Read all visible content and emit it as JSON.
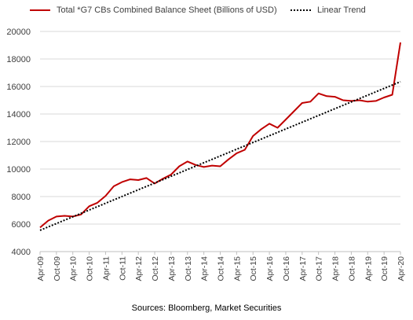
{
  "chart_data": {
    "type": "line",
    "series": [
      {
        "name": "Total *G7 CBs Combined Balance Sheet (Billions of USD)",
        "color": "#c00000",
        "style": "solid",
        "x": [
          "Apr-09",
          "Jul-09",
          "Oct-09",
          "Jan-10",
          "Apr-10",
          "Jul-10",
          "Oct-10",
          "Jan-11",
          "Apr-11",
          "Jul-11",
          "Oct-11",
          "Jan-12",
          "Apr-12",
          "Jul-12",
          "Oct-12",
          "Jan-13",
          "Apr-13",
          "Jul-13",
          "Oct-13",
          "Jan-14",
          "Apr-14",
          "Jul-14",
          "Oct-14",
          "Jan-15",
          "Apr-15",
          "Jul-15",
          "Oct-15",
          "Jan-16",
          "Apr-16",
          "Jul-16",
          "Oct-16",
          "Jan-17",
          "Apr-17",
          "Jul-17",
          "Oct-17",
          "Jan-18",
          "Apr-18",
          "Jul-18",
          "Oct-18",
          "Jan-19",
          "Apr-19",
          "Jul-19",
          "Oct-19",
          "Jan-20",
          "Apr-20"
        ],
        "values": [
          5750,
          6250,
          6550,
          6600,
          6550,
          6700,
          7300,
          7550,
          8050,
          8750,
          9050,
          9250,
          9200,
          9350,
          8950,
          9300,
          9600,
          10200,
          10550,
          10300,
          10150,
          10250,
          10200,
          10700,
          11150,
          11400,
          12400,
          12900,
          13300,
          13000,
          13600,
          14200,
          14800,
          14900,
          15500,
          15300,
          15250,
          15000,
          14950,
          15000,
          14900,
          14950,
          15200,
          15400,
          19200
        ]
      },
      {
        "name": "Linear Trend",
        "color": "#000000",
        "style": "dotted",
        "x": [
          "Apr-09",
          "Apr-20"
        ],
        "values": [
          5550,
          16350
        ]
      }
    ],
    "x_tick_labels": [
      "Apr-09",
      "Oct-09",
      "Apr-10",
      "Oct-10",
      "Apr-11",
      "Oct-11",
      "Apr-12",
      "Oct-12",
      "Apr-13",
      "Oct-13",
      "Apr-14",
      "Oct-14",
      "Apr-15",
      "Oct-15",
      "Apr-16",
      "Oct-16",
      "Apr-17",
      "Oct-17",
      "Apr-18",
      "Oct-18",
      "Apr-19",
      "Oct-19",
      "Apr-20"
    ],
    "y_ticks": [
      4000,
      6000,
      8000,
      10000,
      12000,
      14000,
      16000,
      18000,
      20000
    ],
    "ylim": [
      4000,
      20000
    ],
    "grid": "horizontal",
    "legend": "top",
    "title": "",
    "xlabel": "",
    "ylabel": ""
  },
  "legend": {
    "series_label": "Total *G7 CBs Combined Balance Sheet (Billions of USD)",
    "trend_label": "Linear Trend"
  },
  "source": "Sources: Bloomberg, Market Securities"
}
